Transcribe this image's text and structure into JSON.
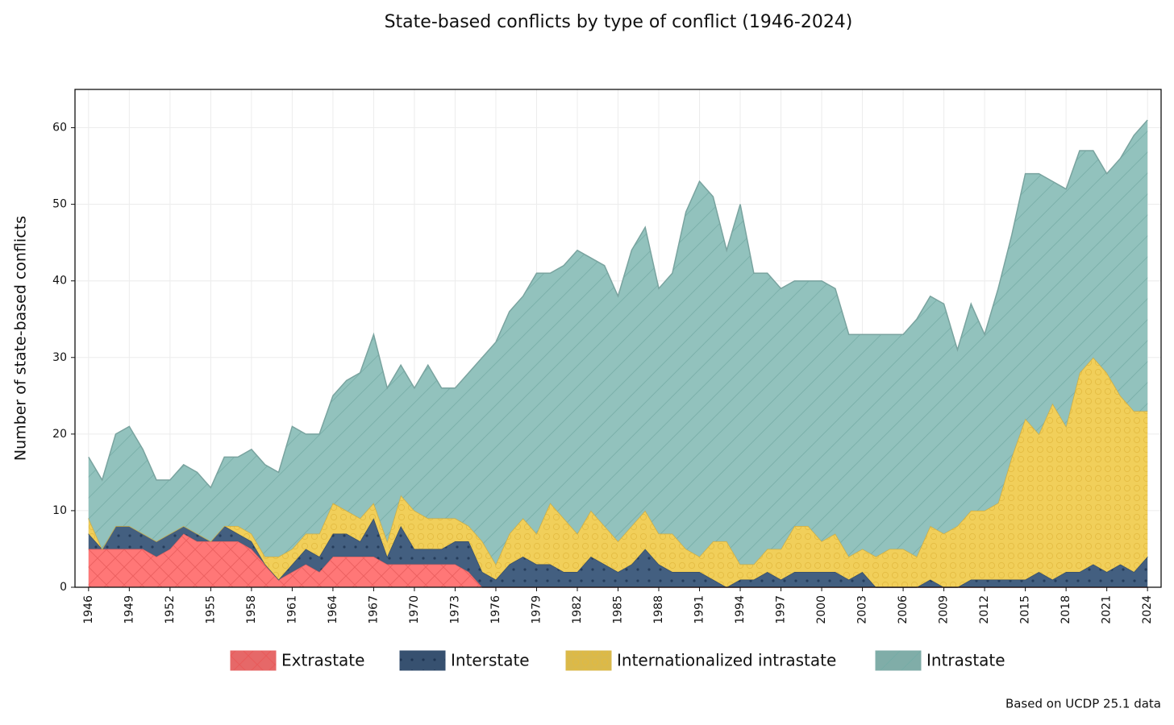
{
  "chart_data": {
    "type": "area",
    "stacked": true,
    "title": "State-based conflicts by type of conflict (1946-2024)",
    "ylabel": "Number of state-based conflicts",
    "note": "Based on UCDP 25.1 data",
    "grid": true,
    "legend": "bottom",
    "xlim": [
      1945,
      2025
    ],
    "ylim": [
      0,
      65
    ],
    "yticks": [
      0,
      10,
      20,
      30,
      40,
      50,
      60
    ],
    "xticks": [
      1946,
      1949,
      1952,
      1955,
      1958,
      1961,
      1964,
      1967,
      1970,
      1973,
      1976,
      1979,
      1982,
      1985,
      1988,
      1991,
      1994,
      1997,
      2000,
      2003,
      2006,
      2009,
      2012,
      2015,
      2018,
      2021,
      2024
    ],
    "x": [
      1946,
      1947,
      1948,
      1949,
      1950,
      1951,
      1952,
      1953,
      1954,
      1955,
      1956,
      1957,
      1958,
      1959,
      1960,
      1961,
      1962,
      1963,
      1964,
      1965,
      1966,
      1967,
      1968,
      1969,
      1970,
      1971,
      1972,
      1973,
      1974,
      1975,
      1976,
      1977,
      1978,
      1979,
      1980,
      1981,
      1982,
      1983,
      1984,
      1985,
      1986,
      1987,
      1988,
      1989,
      1990,
      1991,
      1992,
      1993,
      1994,
      1995,
      1996,
      1997,
      1998,
      1999,
      2000,
      2001,
      2002,
      2003,
      2004,
      2005,
      2006,
      2007,
      2008,
      2009,
      2010,
      2011,
      2012,
      2013,
      2014,
      2015,
      2016,
      2017,
      2018,
      2019,
      2020,
      2021,
      2022,
      2023,
      2024
    ],
    "series": [
      {
        "name": "Extrastate",
        "color": "#ff7373",
        "values": [
          5,
          5,
          5,
          5,
          5,
          4,
          5,
          7,
          6,
          6,
          6,
          6,
          5,
          3,
          1,
          2,
          3,
          2,
          4,
          4,
          4,
          4,
          3,
          3,
          3,
          3,
          3,
          3,
          2,
          0,
          0,
          0,
          0,
          0,
          0,
          0,
          0,
          0,
          0,
          0,
          0,
          0,
          0,
          0,
          0,
          0,
          0,
          0,
          0,
          0,
          0,
          0,
          0,
          0,
          0,
          0,
          0,
          0,
          0,
          0,
          0,
          0,
          0,
          0,
          0,
          0,
          0,
          0,
          0,
          0,
          0,
          0,
          0,
          0,
          0,
          0,
          0,
          0,
          0
        ]
      },
      {
        "name": "Interstate",
        "color": "#3d5a7c",
        "values": [
          2,
          0,
          3,
          3,
          2,
          2,
          2,
          1,
          1,
          0,
          2,
          1,
          1,
          0,
          0,
          1,
          2,
          2,
          3,
          3,
          2,
          5,
          1,
          5,
          2,
          2,
          2,
          3,
          4,
          2,
          1,
          3,
          4,
          3,
          3,
          2,
          2,
          4,
          3,
          2,
          3,
          5,
          3,
          2,
          2,
          2,
          1,
          0,
          1,
          1,
          2,
          1,
          2,
          2,
          2,
          2,
          1,
          2,
          0,
          0,
          0,
          0,
          1,
          0,
          0,
          1,
          1,
          1,
          1,
          1,
          2,
          1,
          2,
          2,
          3,
          2,
          3,
          2,
          4
        ]
      },
      {
        "name": "Internationalized intrastate",
        "color": "#f1cd55",
        "values": [
          2,
          0,
          0,
          0,
          0,
          0,
          0,
          0,
          0,
          0,
          0,
          1,
          1,
          1,
          3,
          2,
          2,
          3,
          4,
          3,
          3,
          2,
          2,
          4,
          5,
          4,
          4,
          3,
          2,
          4,
          2,
          4,
          5,
          4,
          8,
          7,
          5,
          6,
          5,
          4,
          5,
          5,
          4,
          5,
          3,
          2,
          5,
          6,
          2,
          2,
          3,
          4,
          6,
          6,
          4,
          5,
          3,
          3,
          4,
          5,
          5,
          4,
          7,
          7,
          8,
          9,
          9,
          10,
          16,
          21,
          18,
          23,
          19,
          26,
          27,
          26,
          22,
          21,
          19
        ]
      },
      {
        "name": "Intrastate",
        "color": "#8ec0bb",
        "values": [
          8,
          9,
          12,
          13,
          11,
          8,
          7,
          8,
          8,
          7,
          9,
          9,
          11,
          12,
          11,
          16,
          13,
          13,
          14,
          17,
          19,
          22,
          20,
          17,
          16,
          20,
          17,
          17,
          20,
          24,
          29,
          29,
          29,
          34,
          30,
          33,
          37,
          33,
          34,
          32,
          36,
          37,
          32,
          34,
          44,
          49,
          45,
          38,
          47,
          38,
          36,
          34,
          32,
          32,
          34,
          32,
          29,
          28,
          29,
          28,
          28,
          31,
          30,
          30,
          23,
          27,
          23,
          28,
          29,
          32,
          34,
          29,
          31,
          29,
          27,
          26,
          31,
          36,
          38
        ]
      }
    ]
  }
}
